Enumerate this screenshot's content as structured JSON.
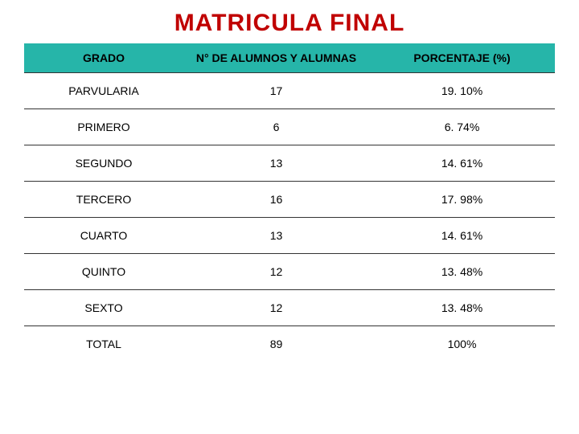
{
  "title": {
    "text": "MATRICULA FINAL",
    "color": "#c00000",
    "fontsize": 30
  },
  "table": {
    "header_bg": "#26b5a9",
    "header_fontsize": 14,
    "cell_fontsize": 14,
    "border_color": "#333333",
    "columns": [
      {
        "label": "GRADO",
        "width": "30%"
      },
      {
        "label": "N° DE ALUMNOS Y ALUMNAS",
        "width": "35%"
      },
      {
        "label": "PORCENTAJE (%)",
        "width": "35%"
      }
    ],
    "rows": [
      {
        "grade": "PARVULARIA",
        "count": "17",
        "pct": "19. 10%"
      },
      {
        "grade": "PRIMERO",
        "count": "6",
        "pct": "6. 74%"
      },
      {
        "grade": "SEGUNDO",
        "count": "13",
        "pct": "14. 61%"
      },
      {
        "grade": "TERCERO",
        "count": "16",
        "pct": "17. 98%"
      },
      {
        "grade": "CUARTO",
        "count": "13",
        "pct": "14. 61%"
      },
      {
        "grade": "QUINTO",
        "count": "12",
        "pct": "13. 48%"
      },
      {
        "grade": "SEXTO",
        "count": "12",
        "pct": "13. 48%"
      },
      {
        "grade": "TOTAL",
        "count": "89",
        "pct": "100%"
      }
    ]
  }
}
